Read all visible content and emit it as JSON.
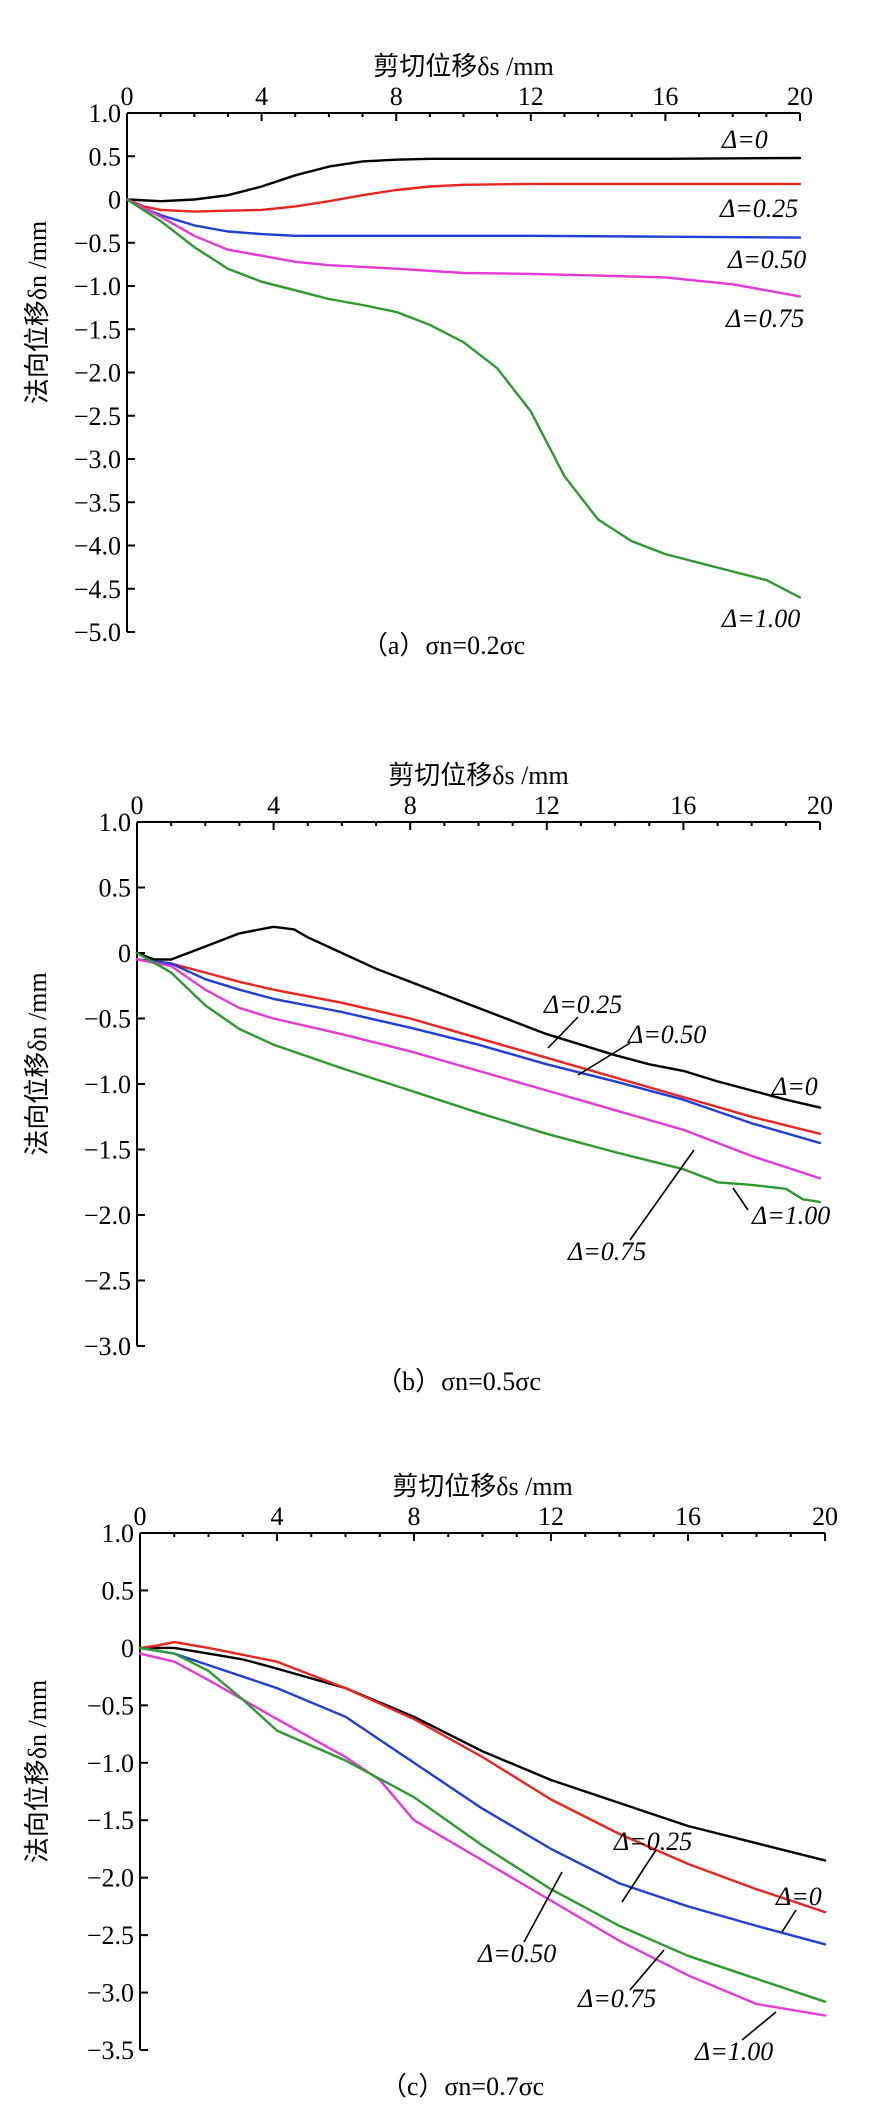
{
  "chart_data": [
    {
      "type": "line",
      "panel": "a",
      "caption": "（a）σn=0.2σc",
      "xlabel": "剪切位移δs /mm",
      "ylabel": "法向位移δn /mm",
      "xlim": [
        0,
        20
      ],
      "ylim": [
        -5.0,
        1.0
      ],
      "xticks": [
        "0",
        "4",
        "8",
        "12",
        "16",
        "20"
      ],
      "yticks": [
        "1.0",
        "0.5",
        "0",
        "-0.5",
        "-1.0",
        "-1.5",
        "-2.0",
        "-2.5",
        "-3.0",
        "-3.5",
        "-4.0",
        "-4.5",
        "-5.0"
      ],
      "series": [
        {
          "name": "Δ=0",
          "color": "#000000",
          "points": [
            [
              0,
              0
            ],
            [
              1,
              -0.02
            ],
            [
              2,
              0
            ],
            [
              3,
              0.05
            ],
            [
              4,
              0.15
            ],
            [
              5,
              0.28
            ],
            [
              6,
              0.38
            ],
            [
              7,
              0.44
            ],
            [
              8,
              0.46
            ],
            [
              9,
              0.47
            ],
            [
              10,
              0.47
            ],
            [
              12,
              0.47
            ],
            [
              16,
              0.47
            ],
            [
              20,
              0.48
            ]
          ]
        },
        {
          "name": "Δ=0.25",
          "color": "#e8251f",
          "points": [
            [
              0,
              0
            ],
            [
              0.5,
              -0.08
            ],
            [
              1,
              -0.12
            ],
            [
              2,
              -0.14
            ],
            [
              3,
              -0.13
            ],
            [
              4,
              -0.12
            ],
            [
              5,
              -0.08
            ],
            [
              6,
              -0.02
            ],
            [
              7,
              0.05
            ],
            [
              8,
              0.11
            ],
            [
              9,
              0.15
            ],
            [
              10,
              0.17
            ],
            [
              12,
              0.18
            ],
            [
              16,
              0.18
            ],
            [
              20,
              0.18
            ]
          ]
        },
        {
          "name": "Δ=0.50",
          "color": "#1f3fd6",
          "points": [
            [
              0,
              0
            ],
            [
              0.5,
              -0.1
            ],
            [
              1,
              -0.18
            ],
            [
              2,
              -0.3
            ],
            [
              3,
              -0.37
            ],
            [
              4,
              -0.4
            ],
            [
              5,
              -0.42
            ],
            [
              8,
              -0.42
            ],
            [
              12,
              -0.42
            ],
            [
              16,
              -0.43
            ],
            [
              20,
              -0.44
            ]
          ]
        },
        {
          "name": "Δ=0.75",
          "color": "#e33ad6",
          "points": [
            [
              0,
              0
            ],
            [
              1,
              -0.2
            ],
            [
              2,
              -0.42
            ],
            [
              3,
              -0.58
            ],
            [
              4,
              -0.65
            ],
            [
              5,
              -0.72
            ],
            [
              6,
              -0.76
            ],
            [
              8,
              -0.8
            ],
            [
              10,
              -0.85
            ],
            [
              12,
              -0.86
            ],
            [
              14,
              -0.88
            ],
            [
              16,
              -0.9
            ],
            [
              18,
              -0.98
            ],
            [
              20,
              -1.12
            ]
          ]
        },
        {
          "name": "Δ=1.00",
          "color": "#2e9a2e",
          "points": [
            [
              0,
              0
            ],
            [
              1,
              -0.25
            ],
            [
              2,
              -0.55
            ],
            [
              3,
              -0.8
            ],
            [
              4,
              -0.95
            ],
            [
              5,
              -1.05
            ],
            [
              6,
              -1.15
            ],
            [
              7,
              -1.22
            ],
            [
              8,
              -1.3
            ],
            [
              9,
              -1.45
            ],
            [
              10,
              -1.65
            ],
            [
              11,
              -1.95
            ],
            [
              12,
              -2.45
            ],
            [
              13,
              -3.2
            ],
            [
              14,
              -3.7
            ],
            [
              15,
              -3.95
            ],
            [
              16,
              -4.1
            ],
            [
              17,
              -4.2
            ],
            [
              18,
              -4.3
            ],
            [
              19,
              -4.4
            ],
            [
              20,
              -4.6
            ]
          ]
        }
      ],
      "annotations": [
        "Δ=0",
        "Δ=0.25",
        "Δ=0.50",
        "Δ=0.75",
        "Δ=1.00"
      ]
    },
    {
      "type": "line",
      "panel": "b",
      "caption": "（b）σn=0.5σc",
      "xlabel": "剪切位移δs /mm",
      "ylabel": "法向位移δn /mm",
      "xlim": [
        0,
        20
      ],
      "ylim": [
        -3.0,
        1.0
      ],
      "xticks": [
        "0",
        "4",
        "8",
        "12",
        "16",
        "20"
      ],
      "yticks": [
        "1.0",
        "0.5",
        "0",
        "-0.5",
        "-1.0",
        "-1.5",
        "-2.0",
        "-2.5",
        "-3.0"
      ],
      "series": [
        {
          "name": "Δ=0",
          "color": "#000000",
          "points": [
            [
              0,
              0
            ],
            [
              0.5,
              -0.05
            ],
            [
              1,
              -0.05
            ],
            [
              2,
              0.05
            ],
            [
              3,
              0.15
            ],
            [
              4,
              0.2
            ],
            [
              4.6,
              0.18
            ],
            [
              5,
              0.12
            ],
            [
              6,
              0
            ],
            [
              7,
              -0.12
            ],
            [
              8,
              -0.22
            ],
            [
              9,
              -0.32
            ],
            [
              10,
              -0.42
            ],
            [
              11,
              -0.52
            ],
            [
              12,
              -0.62
            ],
            [
              13,
              -0.7
            ],
            [
              14,
              -0.78
            ],
            [
              15,
              -0.85
            ],
            [
              16,
              -0.9
            ],
            [
              17,
              -0.98
            ],
            [
              18,
              -1.05
            ],
            [
              19,
              -1.12
            ],
            [
              20,
              -1.18
            ]
          ]
        },
        {
          "name": "Δ=0.25",
          "color": "#e8251f",
          "points": [
            [
              0,
              -0.05
            ],
            [
              1,
              -0.08
            ],
            [
              2,
              -0.15
            ],
            [
              3,
              -0.22
            ],
            [
              4,
              -0.28
            ],
            [
              6,
              -0.38
            ],
            [
              8,
              -0.5
            ],
            [
              10,
              -0.65
            ],
            [
              12,
              -0.8
            ],
            [
              14,
              -0.95
            ],
            [
              16,
              -1.1
            ],
            [
              18,
              -1.25
            ],
            [
              20,
              -1.38
            ]
          ]
        },
        {
          "name": "Δ=0.50",
          "color": "#1f3fd6",
          "points": [
            [
              0,
              -0.05
            ],
            [
              1,
              -0.08
            ],
            [
              2,
              -0.2
            ],
            [
              3,
              -0.28
            ],
            [
              4,
              -0.35
            ],
            [
              6,
              -0.45
            ],
            [
              8,
              -0.57
            ],
            [
              10,
              -0.7
            ],
            [
              12,
              -0.85
            ],
            [
              14,
              -0.98
            ],
            [
              16,
              -1.12
            ],
            [
              18,
              -1.3
            ],
            [
              20,
              -1.45
            ]
          ]
        },
        {
          "name": "Δ=0.75",
          "color": "#e33ad6",
          "points": [
            [
              0,
              -0.05
            ],
            [
              1,
              -0.1
            ],
            [
              2,
              -0.28
            ],
            [
              3,
              -0.42
            ],
            [
              4,
              -0.5
            ],
            [
              6,
              -0.62
            ],
            [
              8,
              -0.75
            ],
            [
              10,
              -0.9
            ],
            [
              12,
              -1.05
            ],
            [
              14,
              -1.2
            ],
            [
              16,
              -1.35
            ],
            [
              18,
              -1.55
            ],
            [
              20,
              -1.72
            ]
          ]
        },
        {
          "name": "Δ=1.00",
          "color": "#2e9a2e",
          "points": [
            [
              0,
              0
            ],
            [
              1,
              -0.15
            ],
            [
              2,
              -0.4
            ],
            [
              3,
              -0.58
            ],
            [
              4,
              -0.7
            ],
            [
              6,
              -0.88
            ],
            [
              8,
              -1.05
            ],
            [
              10,
              -1.22
            ],
            [
              12,
              -1.38
            ],
            [
              14,
              -1.52
            ],
            [
              16,
              -1.65
            ],
            [
              17,
              -1.75
            ],
            [
              18,
              -1.77
            ],
            [
              19,
              -1.8
            ],
            [
              19.5,
              -1.88
            ],
            [
              20,
              -1.9
            ]
          ]
        }
      ],
      "annotations": [
        "Δ=0.25",
        "Δ=0.50",
        "Δ=0",
        "Δ=0.75",
        "Δ=1.00"
      ]
    },
    {
      "type": "line",
      "panel": "c",
      "caption": "（c）σn=0.7σc",
      "xlabel": "剪切位移δs /mm",
      "ylabel": "法向位移δn /mm",
      "xlim": [
        0,
        20
      ],
      "ylim": [
        -3.5,
        1.0
      ],
      "xticks": [
        "0",
        "4",
        "8",
        "12",
        "16",
        "20"
      ],
      "yticks": [
        "1.0",
        "0.5",
        "0",
        "-0.5",
        "-1.0",
        "-1.5",
        "-2.0",
        "-2.5",
        "-3.0",
        "-3.5"
      ],
      "series": [
        {
          "name": "Δ=0",
          "color": "#000000",
          "points": [
            [
              0,
              0
            ],
            [
              1,
              0
            ],
            [
              2,
              -0.05
            ],
            [
              3,
              -0.1
            ],
            [
              4,
              -0.18
            ],
            [
              6,
              -0.35
            ],
            [
              8,
              -0.6
            ],
            [
              10,
              -0.9
            ],
            [
              12,
              -1.15
            ],
            [
              14,
              -1.35
            ],
            [
              16,
              -1.55
            ],
            [
              18,
              -1.7
            ],
            [
              20,
              -1.85
            ]
          ]
        },
        {
          "name": "Δ=0.25",
          "color": "#e8251f",
          "points": [
            [
              0,
              0
            ],
            [
              0.5,
              0.02
            ],
            [
              1,
              0.05
            ],
            [
              2,
              0
            ],
            [
              4,
              -0.12
            ],
            [
              6,
              -0.35
            ],
            [
              8,
              -0.62
            ],
            [
              10,
              -0.95
            ],
            [
              12,
              -1.32
            ],
            [
              14,
              -1.62
            ],
            [
              16,
              -1.88
            ],
            [
              18,
              -2.1
            ],
            [
              20,
              -2.3
            ]
          ]
        },
        {
          "name": "Δ=0.50",
          "color": "#1f3fd6",
          "points": [
            [
              0,
              0
            ],
            [
              1,
              -0.05
            ],
            [
              2,
              -0.15
            ],
            [
              3,
              -0.25
            ],
            [
              4,
              -0.35
            ],
            [
              6,
              -0.6
            ],
            [
              8,
              -1.0
            ],
            [
              10,
              -1.4
            ],
            [
              12,
              -1.75
            ],
            [
              14,
              -2.05
            ],
            [
              16,
              -2.25
            ],
            [
              18,
              -2.42
            ],
            [
              20,
              -2.58
            ]
          ]
        },
        {
          "name": "Δ=0.75",
          "color": "#e33ad6",
          "points": [
            [
              0,
              -0.05
            ],
            [
              1,
              -0.12
            ],
            [
              2,
              -0.28
            ],
            [
              3,
              -0.45
            ],
            [
              4,
              -0.62
            ],
            [
              6,
              -0.95
            ],
            [
              7,
              -1.15
            ],
            [
              8,
              -1.5
            ],
            [
              10,
              -1.85
            ],
            [
              12,
              -2.2
            ],
            [
              14,
              -2.55
            ],
            [
              16,
              -2.85
            ],
            [
              18,
              -3.1
            ],
            [
              20,
              -3.2
            ]
          ]
        },
        {
          "name": "Δ=1.00",
          "color": "#2e9a2e",
          "points": [
            [
              0,
              0
            ],
            [
              1,
              -0.05
            ],
            [
              2,
              -0.2
            ],
            [
              3,
              -0.45
            ],
            [
              4,
              -0.72
            ],
            [
              6,
              -0.98
            ],
            [
              8,
              -1.3
            ],
            [
              10,
              -1.72
            ],
            [
              12,
              -2.1
            ],
            [
              14,
              -2.42
            ],
            [
              16,
              -2.68
            ],
            [
              18,
              -2.88
            ],
            [
              20,
              -3.08
            ]
          ]
        }
      ],
      "annotations": [
        "Δ=0.25",
        "Δ=0",
        "Δ=0.50",
        "Δ=0.75",
        "Δ=1.00"
      ]
    }
  ]
}
